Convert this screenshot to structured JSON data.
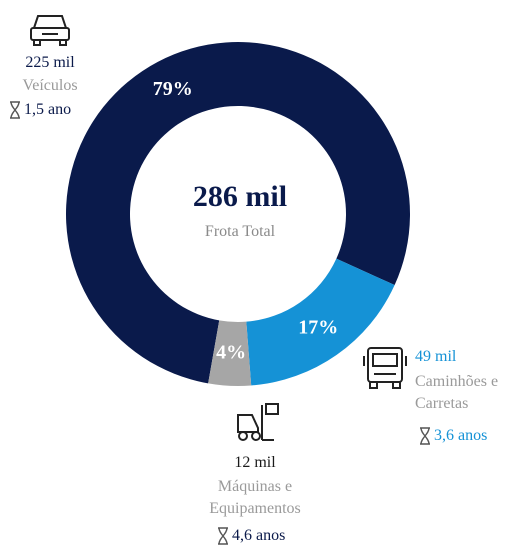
{
  "chart_data": {
    "type": "donut",
    "center_title": "286 mil",
    "center_subtitle": "Frota Total",
    "categories": [
      "Veículos",
      "Caminhões e Carretas",
      "Máquinas e Equipamentos"
    ],
    "values": [
      79,
      17,
      4
    ],
    "value_labels": [
      "79%",
      "17%",
      "4%"
    ],
    "colors": [
      "#0a1a4b",
      "#1592d6",
      "#a6a6a6"
    ],
    "fleet": [
      "225 mil",
      "49 mil",
      "12 mil"
    ],
    "ages": [
      "1,5 ano",
      "3,6 anos",
      "4,6 anos"
    ]
  }
}
